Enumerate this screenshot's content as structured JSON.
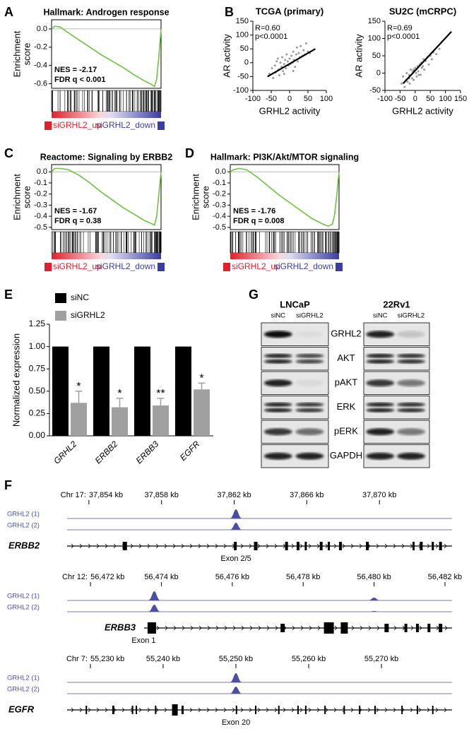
{
  "panel_labels": [
    "A",
    "B",
    "C",
    "D",
    "E",
    "F",
    "G"
  ],
  "chart_data": [
    {
      "type": "gsea",
      "title": "Hallmark: Androgen response",
      "y_label": [
        "Enrichment",
        "score"
      ],
      "color": "#6bc43c",
      "x": [
        0,
        3,
        8,
        15,
        25,
        35,
        45,
        55,
        65,
        75,
        85,
        90,
        94,
        96,
        98,
        100
      ],
      "values": [
        0,
        0.03,
        0.02,
        -0.04,
        -0.12,
        -0.2,
        -0.28,
        -0.35,
        -0.42,
        -0.5,
        -0.57,
        -0.6,
        -0.63,
        -0.55,
        -0.3,
        0
      ],
      "xlim": [
        0,
        100
      ],
      "ylim": [
        -0.65,
        0.1
      ],
      "yticks": [
        {
          "value": 0,
          "label": "0.0"
        },
        -0.2,
        -0.4,
        -0.6
      ],
      "annotations": [
        "NES = -2.17",
        "FDR q < 0.001"
      ],
      "legend": [
        "siGRHL2_up",
        "siGRHL2_down"
      ]
    },
    {
      "type": "scatter",
      "title": "TCGA (primary)",
      "x_label": "GRHL2 activity",
      "y_label": "AR activity",
      "color": "#999999",
      "x": [
        -55,
        -48,
        -45,
        -40,
        -38,
        -35,
        -30,
        -28,
        -25,
        -22,
        -20,
        -18,
        -15,
        -12,
        -10,
        -8,
        -5,
        -3,
        0,
        2,
        5,
        8,
        10,
        12,
        15,
        18,
        20,
        22,
        25,
        28,
        30,
        35,
        38,
        42,
        45,
        50,
        55,
        -32,
        -15,
        10
      ],
      "values": [
        -40,
        -20,
        -55,
        -10,
        -35,
        5,
        -25,
        -45,
        0,
        -15,
        20,
        -30,
        -5,
        10,
        -20,
        30,
        5,
        -10,
        15,
        -5,
        25,
        0,
        40,
        10,
        -15,
        30,
        55,
        5,
        35,
        20,
        60,
        25,
        45,
        30,
        70,
        40,
        35,
        15,
        -40,
        -30
      ],
      "fit": {
        "x": [
          -60,
          70
        ],
        "values": [
          -50,
          50
        ]
      },
      "xlim": [
        -100,
        100
      ],
      "xticks": [
        -100,
        -50,
        0,
        50,
        100
      ],
      "ylim": [
        -100,
        150
      ],
      "yticks": [
        -100,
        -50,
        0,
        50,
        100,
        150
      ],
      "annotations": [
        "R=0.60",
        "p<0.0001"
      ]
    },
    {
      "type": "scatter",
      "title": "SU2C (mCRPC)",
      "x_label": "GRHL2 activity",
      "y_label": "AR activity",
      "color": "#999999",
      "x": [
        -45,
        -40,
        -35,
        -30,
        -28,
        -25,
        -20,
        -18,
        -15,
        -10,
        -8,
        -5,
        0,
        3,
        5,
        8,
        10,
        15,
        18,
        20,
        25,
        28,
        30,
        35,
        40,
        45,
        50,
        55,
        60,
        70,
        80,
        -20,
        -5,
        12,
        22
      ],
      "values": [
        -30,
        -10,
        -40,
        -20,
        0,
        -25,
        -5,
        -30,
        10,
        -15,
        5,
        -20,
        15,
        0,
        -10,
        20,
        5,
        25,
        -5,
        30,
        20,
        40,
        10,
        35,
        45,
        25,
        50,
        40,
        60,
        55,
        70,
        -15,
        10,
        -5,
        15
      ],
      "fit": {
        "x": [
          -40,
          120
        ],
        "values": [
          -30,
          120
        ]
      },
      "xlim": [
        -100,
        150
      ],
      "xticks": [
        -100,
        -50,
        0,
        50,
        100,
        150
      ],
      "ylim": [
        -50,
        150
      ],
      "yticks": [
        -50,
        0,
        50,
        100,
        150
      ],
      "annotations": [
        "R=0.69",
        "p<0.0001"
      ]
    },
    {
      "type": "gsea",
      "title": "Reactome: Signaling by ERBB2",
      "y_label": [
        "Enrichment",
        "score"
      ],
      "color": "#6bc43c",
      "x": [
        0,
        3,
        8,
        15,
        25,
        35,
        45,
        55,
        65,
        75,
        85,
        90,
        94,
        96,
        98,
        100
      ],
      "values": [
        0,
        0.03,
        0.03,
        0.02,
        -0.03,
        -0.1,
        -0.18,
        -0.25,
        -0.32,
        -0.38,
        -0.44,
        -0.46,
        -0.48,
        -0.4,
        -0.2,
        0
      ],
      "xlim": [
        0,
        100
      ],
      "ylim": [
        -0.52,
        0.065
      ],
      "yticks": [
        {
          "value": 0,
          "label": "0.0"
        },
        -0.1,
        -0.2,
        -0.3,
        -0.4,
        -0.5
      ],
      "annotations": [
        "NES = -1.67",
        "FDR q = 0.38"
      ],
      "legend": [
        "siGRHL2_up",
        "siGRHL2_down"
      ]
    },
    {
      "type": "gsea",
      "title": "Hallmark: PI3K/Akt/MTOR signaling",
      "y_label": [
        "Enrichment",
        "score"
      ],
      "color": "#6bc43c",
      "x": [
        0,
        3,
        8,
        15,
        25,
        35,
        45,
        55,
        65,
        75,
        85,
        90,
        94,
        96,
        98,
        100
      ],
      "values": [
        0,
        0.02,
        0.03,
        0.02,
        -0.05,
        -0.13,
        -0.21,
        -0.28,
        -0.35,
        -0.42,
        -0.47,
        -0.49,
        -0.47,
        -0.38,
        -0.2,
        0
      ],
      "xlim": [
        0,
        100
      ],
      "ylim": [
        -0.52,
        0.065
      ],
      "yticks": [
        {
          "value": 0,
          "label": "0.0"
        },
        -0.1,
        -0.2,
        -0.3,
        -0.4,
        -0.5
      ],
      "annotations": [
        "NES = -1.76",
        "FDR q = 0.008"
      ],
      "legend": [
        "siGRHL2_up",
        "siGRHL2_down"
      ]
    },
    {
      "type": "bar",
      "y_label": "Normalized expression",
      "categories": [
        "GRHL2",
        "ERBB2",
        "ERBB3",
        "EGFR"
      ],
      "series": [
        {
          "name": "siNC",
          "color": "#000000",
          "values": [
            1,
            1,
            1,
            1
          ]
        },
        {
          "name": "siGRHL2",
          "color": "#a0a0a0",
          "values": [
            0.37,
            0.32,
            0.34,
            0.52
          ],
          "errors": [
            0.13,
            0.1,
            0.08,
            0.07
          ],
          "significance": [
            "*",
            "*",
            "**",
            "*"
          ]
        }
      ],
      "ylim": [
        0,
        1.25
      ],
      "yticks": [
        {
          "value": 0,
          "label": "0.00"
        },
        {
          "value": 0.25,
          "label": "0.25"
        },
        {
          "value": 0.5,
          "label": "0.50"
        },
        {
          "value": 0.75,
          "label": "0.75"
        },
        {
          "value": 1,
          "label": "1.00"
        },
        {
          "value": 1.25,
          "label": "1.25"
        }
      ]
    }
  ],
  "blots": {
    "cell_lines": [
      {
        "name": "LNCaP",
        "lanes": [
          "siNC",
          "siGRHL2"
        ]
      },
      {
        "name": "22Rv1",
        "lanes": [
          "siNC",
          "siGRHL2"
        ]
      }
    ],
    "proteins": [
      "GRHL2",
      "AKT",
      "pAKT",
      "ERK",
      "pERK",
      "GAPDH"
    ]
  },
  "tracks": [
    {
      "chrom": "Chr 17:",
      "xlim": [
        37852.8,
        37874
      ],
      "xticks": [
        {
          "value": 37854,
          "label": "37,854 kb"
        },
        {
          "value": 37858,
          "label": "37,858 kb"
        },
        {
          "value": 37862,
          "label": "37,862 kb"
        },
        {
          "value": 37866,
          "label": "37,866 kb"
        },
        {
          "value": 37870,
          "label": "37,870 kb"
        }
      ],
      "samples": [
        "GRHL2 (1)",
        "GRHL2 (2)"
      ],
      "peaks": [
        37862.1
      ],
      "gene": "ERBB2",
      "exon_label": "Exon 2/5",
      "exon_x": 37862.1
    },
    {
      "chrom": "Chr 12:",
      "xlim": [
        56471.34,
        56482.2
      ],
      "xticks": [
        {
          "value": 56472,
          "label": "56,472 kb"
        },
        {
          "value": 56474,
          "label": "56,474 kb"
        },
        {
          "value": 56476,
          "label": "56,476 kb"
        },
        {
          "value": 56478,
          "label": "56,478 kb"
        },
        {
          "value": 56480,
          "label": "56,480 kb"
        },
        {
          "value": 56482,
          "label": "56,482 kb"
        }
      ],
      "samples": [
        "GRHL2 (1)",
        "GRHL2 (2)"
      ],
      "peaks": [
        56473.8,
        56480
      ],
      "gene": "ERBB3",
      "exon_label": "Exon 1",
      "exon_x": 56473.5
    },
    {
      "chrom": "Chr 7:",
      "xlim": [
        55226.8,
        55279.7
      ],
      "xticks": [
        {
          "value": 55230,
          "label": "55,230 kb"
        },
        {
          "value": 55240,
          "label": "55,240 kb"
        },
        {
          "value": 55250,
          "label": "55,250 kb"
        },
        {
          "value": 55260,
          "label": "55,260 kb"
        },
        {
          "value": 55270,
          "label": "55,270 kb"
        }
      ],
      "samples": [
        "GRHL2 (1)",
        "GRHL2 (2)"
      ],
      "peaks": [
        55250
      ],
      "gene": "EGFR",
      "exon_label": "Exon 20",
      "exon_x": 55250
    }
  ]
}
